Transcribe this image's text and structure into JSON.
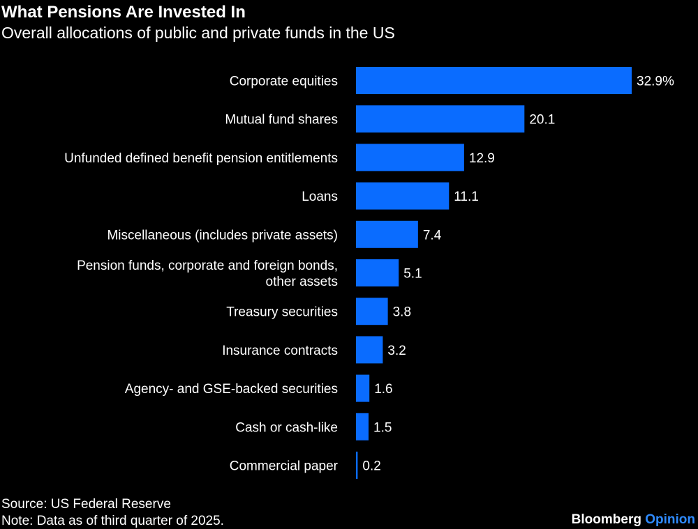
{
  "chart_data": {
    "type": "bar",
    "orientation": "horizontal",
    "title": "What Pensions Are Invested In",
    "subtitle": "Overall allocations of public and private funds in the US",
    "categories": [
      [
        "Corporate equities"
      ],
      [
        "Mutual fund shares"
      ],
      [
        "Unfunded defined benefit pension entitlements"
      ],
      [
        "Loans"
      ],
      [
        "Miscellaneous (includes private assets)"
      ],
      [
        "Pension funds, corporate and foreign bonds,",
        "other assets"
      ],
      [
        "Treasury securities"
      ],
      [
        "Insurance contracts"
      ],
      [
        "Agency- and GSE-backed securities"
      ],
      [
        "Cash or cash-like"
      ],
      [
        "Commercial paper"
      ]
    ],
    "values": [
      32.9,
      20.1,
      12.9,
      11.1,
      7.4,
      5.1,
      3.8,
      3.2,
      1.6,
      1.5,
      0.2
    ],
    "data_labels": [
      "32.9%",
      "20.1",
      "12.9",
      "11.1",
      "7.4",
      "5.1",
      "3.8",
      "3.2",
      "1.6",
      "1.5",
      "0.2"
    ],
    "xlim": [
      0,
      32.9
    ],
    "grid": false,
    "bar_color": "#0a6cff"
  },
  "footer": {
    "source": "Source: US Federal Reserve",
    "note": "Note: Data as of third quarter of 2025.",
    "logo_brand": "Bloomberg",
    "logo_section": "Opinion",
    "logo_section_color": "#2f8bff"
  }
}
